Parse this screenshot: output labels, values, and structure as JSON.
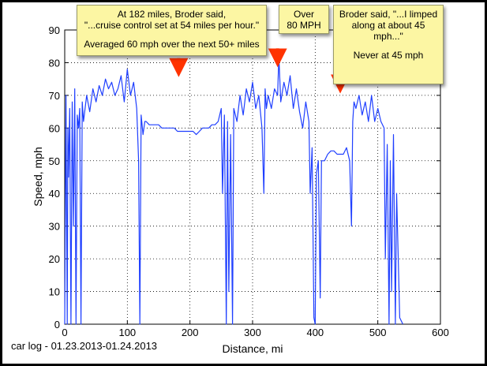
{
  "chart_data": {
    "type": "line",
    "title": "",
    "xlabel": "Distance, mi",
    "ylabel": "Speed, mph",
    "xlim": [
      0,
      600
    ],
    "ylim": [
      0,
      90
    ],
    "xticks": [
      0,
      100,
      200,
      300,
      400,
      500,
      600
    ],
    "yticks": [
      0,
      10,
      20,
      30,
      40,
      50,
      60,
      70,
      80,
      90
    ],
    "grid": true,
    "series": [
      {
        "color": "#1f3fff",
        "x": [
          0,
          2,
          4,
          5,
          6,
          8,
          10,
          12,
          14,
          16,
          18,
          20,
          22,
          24,
          26,
          28,
          30,
          35,
          40,
          45,
          50,
          55,
          60,
          65,
          70,
          75,
          80,
          85,
          90,
          95,
          100,
          105,
          110,
          115,
          118,
          120,
          122,
          125,
          128,
          130,
          135,
          140,
          145,
          150,
          155,
          160,
          165,
          170,
          175,
          180,
          185,
          190,
          195,
          200,
          205,
          210,
          215,
          220,
          225,
          230,
          235,
          240,
          245,
          250,
          252,
          255,
          258,
          260,
          262,
          265,
          268,
          270,
          275,
          280,
          285,
          290,
          295,
          300,
          305,
          310,
          315,
          318,
          320,
          322,
          325,
          330,
          335,
          340,
          342,
          345,
          350,
          355,
          360,
          365,
          370,
          375,
          380,
          385,
          390,
          392,
          395,
          398,
          400,
          402,
          405,
          408,
          410,
          415,
          420,
          425,
          430,
          435,
          440,
          445,
          450,
          455,
          458,
          460,
          462,
          465,
          470,
          475,
          480,
          485,
          490,
          495,
          500,
          505,
          510,
          512,
          515,
          518,
          520,
          522,
          525,
          528,
          530,
          535,
          540
        ],
        "y": [
          0,
          70,
          0,
          60,
          45,
          66,
          0,
          68,
          30,
          72,
          0,
          64,
          60,
          66,
          0,
          68,
          62,
          70,
          65,
          72,
          68,
          73,
          70,
          75,
          72,
          74,
          70,
          72,
          76,
          68,
          78,
          70,
          74,
          66,
          50,
          0,
          64,
          58,
          62,
          62,
          61,
          61,
          61,
          61,
          60,
          60,
          60,
          60,
          60,
          59,
          59,
          59,
          59,
          59,
          59,
          58,
          59,
          60,
          60,
          60,
          61,
          61,
          62,
          66,
          40,
          64,
          0,
          62,
          10,
          58,
          0,
          66,
          62,
          70,
          64,
          72,
          68,
          74,
          66,
          70,
          60,
          40,
          72,
          66,
          70,
          66,
          72,
          70,
          82,
          68,
          74,
          70,
          76,
          66,
          72,
          65,
          60,
          68,
          62,
          40,
          54,
          2,
          0,
          46,
          50,
          8,
          50,
          50,
          52,
          53,
          53,
          52,
          52,
          52,
          54,
          50,
          30,
          62,
          68,
          66,
          70,
          64,
          68,
          62,
          70,
          62,
          66,
          62,
          60,
          20,
          55,
          0,
          50,
          10,
          58,
          0,
          40,
          2,
          0
        ]
      }
    ],
    "annotations": [
      {
        "lines": [
          "At 182 miles, Broder said,",
          "\"...cruise control set at 54 miles per hour.\"",
          "",
          "Averaged 60 mph over the next 50+ miles"
        ],
        "arrow_x": 182,
        "arrow_y": 78
      },
      {
        "lines": [
          "Over",
          "80 MPH"
        ],
        "arrow_x": 340,
        "arrow_y": 81
      },
      {
        "lines": [
          "Broder said, \"...I limped",
          "along at about 45",
          "mph...\"",
          "",
          "Never at 45 mph"
        ],
        "arrow_x": 440,
        "arrow_y": 73
      }
    ]
  },
  "caption": "car log - 01.23.2013-01.24.2013"
}
